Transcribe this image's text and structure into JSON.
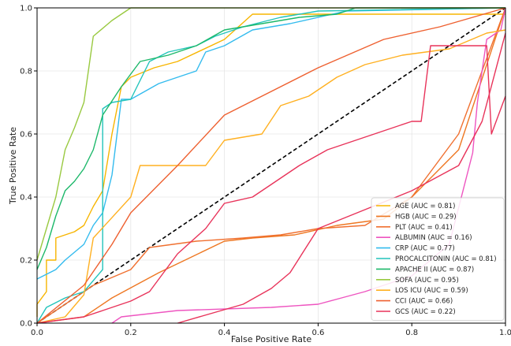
{
  "chart_data": {
    "type": "line",
    "title": "",
    "xlabel": "False Positive Rate",
    "ylabel": "True Positive Rate",
    "xlim": [
      0,
      1
    ],
    "ylim": [
      0,
      1
    ],
    "x_ticks": [
      "0.0",
      "0.2",
      "0.4",
      "0.6",
      "0.8",
      "1.0"
    ],
    "y_ticks": [
      "0.0",
      "0.2",
      "0.4",
      "0.6",
      "0.8",
      "1.0"
    ],
    "grid": true,
    "legend_position": "lower-right",
    "reference_line": {
      "from": [
        0,
        0
      ],
      "to": [
        1,
        1
      ],
      "style": "dashed",
      "color": "#000000"
    },
    "series": [
      {
        "name": "AGE (AUC = 0.81)",
        "color": "#f7b500",
        "points": [
          [
            0,
            0.02
          ],
          [
            0,
            0.06
          ],
          [
            0.02,
            0.1
          ],
          [
            0.02,
            0.2
          ],
          [
            0.04,
            0.2
          ],
          [
            0.04,
            0.27
          ],
          [
            0.08,
            0.29
          ],
          [
            0.1,
            0.31
          ],
          [
            0.12,
            0.37
          ],
          [
            0.14,
            0.42
          ],
          [
            0.16,
            0.6
          ],
          [
            0.18,
            0.75
          ],
          [
            0.2,
            0.78
          ],
          [
            0.25,
            0.81
          ],
          [
            0.3,
            0.83
          ],
          [
            0.4,
            0.9
          ],
          [
            0.46,
            0.98
          ],
          [
            1,
            0.98
          ]
        ]
      },
      {
        "name": "HGB (AUC = 0.29)",
        "color": "#ee7722",
        "points": [
          [
            0,
            0
          ],
          [
            0.1,
            0.02
          ],
          [
            0.16,
            0.08
          ],
          [
            0.26,
            0.16
          ],
          [
            0.4,
            0.26
          ],
          [
            0.46,
            0.27
          ],
          [
            0.55,
            0.28
          ],
          [
            0.64,
            0.31
          ],
          [
            0.74,
            0.33
          ],
          [
            0.8,
            0.4
          ],
          [
            0.9,
            0.55
          ],
          [
            1,
            1
          ]
        ]
      },
      {
        "name": "PLT (AUC = 0.41)",
        "color": "#f07030",
        "points": [
          [
            0,
            0
          ],
          [
            0.12,
            0.12
          ],
          [
            0.2,
            0.17
          ],
          [
            0.24,
            0.24
          ],
          [
            0.34,
            0.26
          ],
          [
            0.44,
            0.27
          ],
          [
            0.52,
            0.28
          ],
          [
            0.6,
            0.3
          ],
          [
            0.7,
            0.31
          ],
          [
            0.8,
            0.4
          ],
          [
            0.9,
            0.6
          ],
          [
            1,
            1
          ]
        ]
      },
      {
        "name": "ALBUMIN (AUC = 0.16)",
        "color": "#ee55c0",
        "points": [
          [
            0.16,
            0
          ],
          [
            0.18,
            0.02
          ],
          [
            0.3,
            0.04
          ],
          [
            0.5,
            0.05
          ],
          [
            0.6,
            0.06
          ],
          [
            0.65,
            0.08
          ],
          [
            0.7,
            0.1
          ],
          [
            0.8,
            0.15
          ],
          [
            0.88,
            0.25
          ],
          [
            0.93,
            0.54
          ],
          [
            0.94,
            0.7
          ],
          [
            0.95,
            0.8
          ],
          [
            0.96,
            0.9
          ],
          [
            0.99,
            0.93
          ],
          [
            1,
            1
          ]
        ]
      },
      {
        "name": "CRP (AUC = 0.77)",
        "color": "#33bbee",
        "points": [
          [
            0,
            0.14
          ],
          [
            0.04,
            0.17
          ],
          [
            0.06,
            0.2
          ],
          [
            0.1,
            0.25
          ],
          [
            0.12,
            0.31
          ],
          [
            0.14,
            0.35
          ],
          [
            0.16,
            0.47
          ],
          [
            0.18,
            0.71
          ],
          [
            0.2,
            0.71
          ],
          [
            0.26,
            0.76
          ],
          [
            0.34,
            0.8
          ],
          [
            0.36,
            0.86
          ],
          [
            0.4,
            0.88
          ],
          [
            0.46,
            0.93
          ],
          [
            0.54,
            0.95
          ],
          [
            0.66,
            0.99
          ],
          [
            1,
            1
          ]
        ]
      },
      {
        "name": "PROCALCITONIN (AUC = 0.81)",
        "color": "#22c4bb",
        "points": [
          [
            0,
            0
          ],
          [
            0.02,
            0.05
          ],
          [
            0.06,
            0.08
          ],
          [
            0.1,
            0.1
          ],
          [
            0.14,
            0.17
          ],
          [
            0.14,
            0.68
          ],
          [
            0.16,
            0.7
          ],
          [
            0.2,
            0.71
          ],
          [
            0.24,
            0.83
          ],
          [
            0.28,
            0.86
          ],
          [
            0.34,
            0.88
          ],
          [
            0.38,
            0.91
          ],
          [
            0.44,
            0.94
          ],
          [
            0.52,
            0.97
          ],
          [
            0.6,
            0.99
          ],
          [
            1,
            1
          ]
        ]
      },
      {
        "name": "APACHE II (AUC = 0.87)",
        "color": "#1cb86a",
        "points": [
          [
            0,
            0.17
          ],
          [
            0.02,
            0.24
          ],
          [
            0.04,
            0.34
          ],
          [
            0.06,
            0.42
          ],
          [
            0.08,
            0.45
          ],
          [
            0.1,
            0.49
          ],
          [
            0.12,
            0.55
          ],
          [
            0.14,
            0.66
          ],
          [
            0.18,
            0.75
          ],
          [
            0.22,
            0.83
          ],
          [
            0.28,
            0.85
          ],
          [
            0.34,
            0.88
          ],
          [
            0.4,
            0.93
          ],
          [
            0.48,
            0.95
          ],
          [
            0.56,
            0.97
          ],
          [
            0.64,
            0.98
          ],
          [
            0.68,
            1
          ],
          [
            1,
            1
          ]
        ]
      },
      {
        "name": "SOFA (AUC = 0.95)",
        "color": "#99c940",
        "points": [
          [
            0,
            0.2
          ],
          [
            0.02,
            0.3
          ],
          [
            0.04,
            0.4
          ],
          [
            0.06,
            0.55
          ],
          [
            0.08,
            0.62
          ],
          [
            0.1,
            0.7
          ],
          [
            0.12,
            0.91
          ],
          [
            0.16,
            0.96
          ],
          [
            0.2,
            1
          ],
          [
            1,
            1
          ]
        ]
      },
      {
        "name": "LOS ICU (AUC = 0.59)",
        "color": "#ffb020",
        "points": [
          [
            0,
            0
          ],
          [
            0.06,
            0.02
          ],
          [
            0.1,
            0.09
          ],
          [
            0.12,
            0.27
          ],
          [
            0.2,
            0.4
          ],
          [
            0.22,
            0.5
          ],
          [
            0.36,
            0.5
          ],
          [
            0.4,
            0.58
          ],
          [
            0.48,
            0.6
          ],
          [
            0.52,
            0.69
          ],
          [
            0.58,
            0.72
          ],
          [
            0.64,
            0.78
          ],
          [
            0.7,
            0.82
          ],
          [
            0.78,
            0.85
          ],
          [
            0.88,
            0.87
          ],
          [
            0.96,
            0.92
          ],
          [
            1,
            0.93
          ]
        ]
      },
      {
        "name": "CCI (AUC = 0.66)",
        "color": "#ee6030",
        "points": [
          [
            0,
            0
          ],
          [
            0.1,
            0.12
          ],
          [
            0.16,
            0.25
          ],
          [
            0.2,
            0.35
          ],
          [
            0.3,
            0.5
          ],
          [
            0.4,
            0.66
          ],
          [
            0.6,
            0.81
          ],
          [
            0.74,
            0.9
          ],
          [
            0.86,
            0.94
          ],
          [
            1,
            1
          ]
        ]
      },
      {
        "name": "GCS (AUC = 0.22)",
        "color": "#e8335a",
        "points": [
          [
            0,
            0
          ],
          [
            0.1,
            0.02
          ],
          [
            0.14,
            0.04
          ],
          [
            0.2,
            0.07
          ],
          [
            0.24,
            0.1
          ],
          [
            0.3,
            0.22
          ],
          [
            0.36,
            0.3
          ],
          [
            0.4,
            0.38
          ],
          [
            0.46,
            0.4
          ],
          [
            0.5,
            0.44
          ],
          [
            0.56,
            0.5
          ],
          [
            0.62,
            0.55
          ],
          [
            0.72,
            0.6
          ],
          [
            0.8,
            0.64
          ],
          [
            0.82,
            0.64
          ],
          [
            0.84,
            0.88
          ],
          [
            0.9,
            0.88
          ],
          [
            0.96,
            0.88
          ],
          [
            0.97,
            0.6
          ],
          [
            1,
            0.72
          ]
        ]
      },
      {
        "name": "",
        "color": "#e8335a",
        "points": [
          [
            0.3,
            0
          ],
          [
            0.44,
            0.06
          ],
          [
            0.5,
            0.11
          ],
          [
            0.54,
            0.16
          ],
          [
            0.6,
            0.3
          ],
          [
            0.7,
            0.36
          ],
          [
            0.8,
            0.42
          ],
          [
            0.9,
            0.5
          ],
          [
            0.95,
            0.64
          ],
          [
            1,
            0.92
          ]
        ]
      }
    ]
  }
}
